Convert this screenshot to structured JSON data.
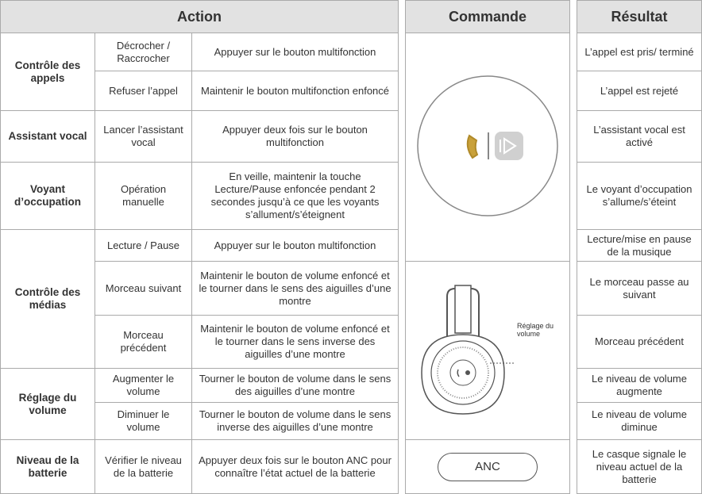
{
  "header": {
    "action": "Action",
    "command": "Commande",
    "result": "Résultat"
  },
  "groups": [
    {
      "label": "Contrôle des appels",
      "rows": [
        {
          "sub": "Décrocher / Raccrocher",
          "action": "Appuyer sur le bouton multifonction",
          "result": "L’appel est pris/ terminé"
        },
        {
          "sub": "Refuser l’appel",
          "action": "Maintenir le bouton multifonction enfoncé",
          "result": "L’appel est rejeté"
        }
      ]
    },
    {
      "label": "Assistant vocal",
      "rows": [
        {
          "sub": "Lancer l’assistant vocal",
          "action": "Appuyer deux fois sur le bouton multifonction",
          "result": "L’assistant vocal est activé"
        }
      ]
    },
    {
      "label": "Voyant d’occupation",
      "rows": [
        {
          "sub": "Opération manuelle",
          "action": "En veille, maintenir la touche Lecture/Pause enfoncée pendant 2 secondes jusqu’à ce que les voyants s’allument/s’éteignent",
          "result": "Le voyant d’occupation s’allume/s’éteint"
        }
      ]
    },
    {
      "label": "Contrôle des médias",
      "rows": [
        {
          "sub": "Lecture / Pause",
          "action": "Appuyer sur le bouton multifonction",
          "result": "Lecture/mise en pause de la musique"
        },
        {
          "sub": "Morceau suivant",
          "action": "Maintenir le bouton de volume enfoncé et le tourner dans le sens des aiguilles d’une montre",
          "result": "Le morceau passe au suivant"
        },
        {
          "sub": "Morceau précédent",
          "action": "Maintenir le bouton de volume enfoncé et le tourner dans le sens inverse des aiguilles d’une montre",
          "result": "Morceau précédent"
        }
      ]
    },
    {
      "label": "Réglage du volume",
      "rows": [
        {
          "sub": "Augmenter le volume",
          "action": "Tourner le bouton de volume dans le sens des aiguilles d’une montre",
          "result": "Le niveau de volume augmente"
        },
        {
          "sub": "Diminuer le volume",
          "action": "Tourner le bouton de volume dans le sens inverse des aiguilles d’une montre",
          "result": "Le niveau de volume diminue"
        }
      ]
    },
    {
      "label": "Niveau de la batterie",
      "rows": [
        {
          "sub": "Vérifier le niveau de la batterie",
          "action": "Appuyer deux fois sur le bouton ANC pour connaître l’état actuel de la batterie",
          "result": "Le casque signale le niveau actuel de la batterie"
        }
      ]
    }
  ],
  "commands": {
    "volume_label": "Réglage du volume",
    "anc": "ANC"
  }
}
